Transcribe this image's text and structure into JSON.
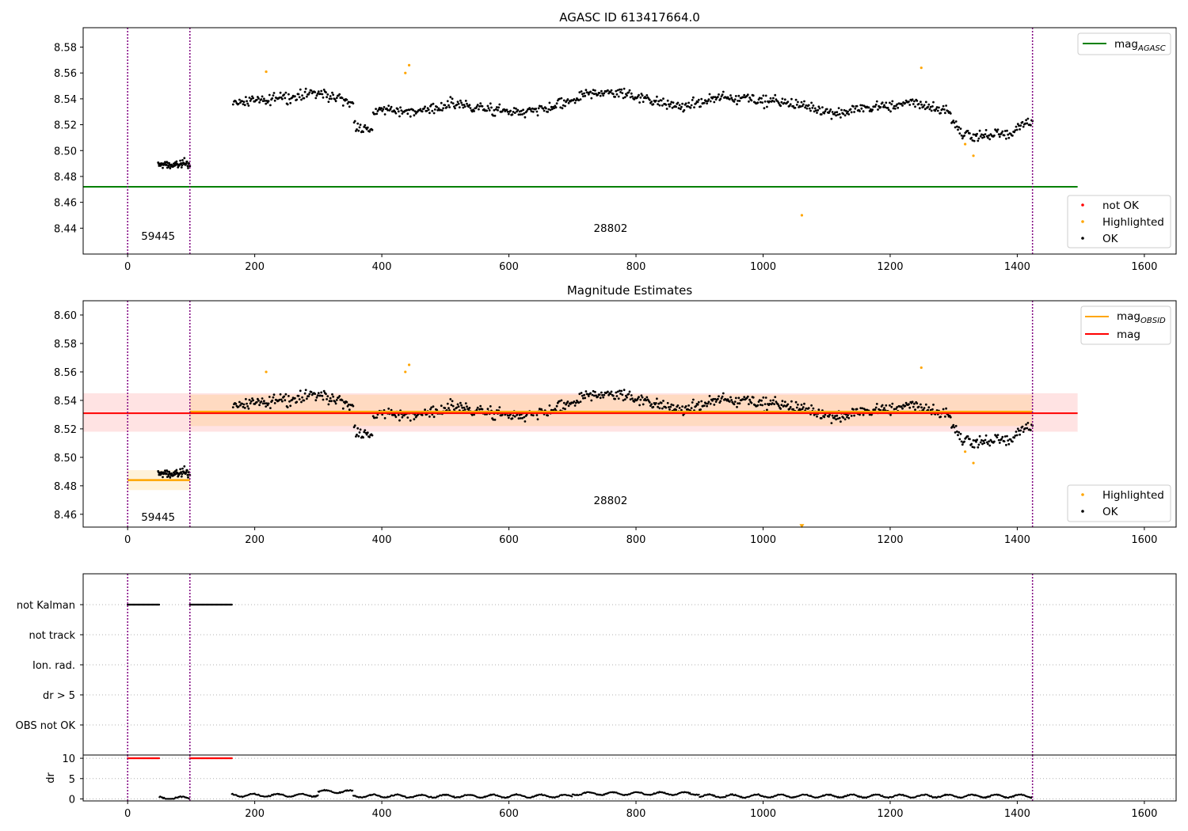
{
  "colors": {
    "ok": "#000000",
    "highlighted": "#ffa500",
    "not_ok": "#ff0000",
    "agasc_line": "#008000",
    "obsid_line": "#ffa500",
    "mag_line": "#ff0000",
    "obs_boundary": "#800080",
    "grid": "#b0b0b0"
  },
  "chart_data": [
    {
      "type": "scatter",
      "title": "AGASC ID 613417664.0",
      "xlim": [
        -70,
        1650
      ],
      "ylim": [
        8.42,
        8.595
      ],
      "xticks": [
        0,
        200,
        400,
        600,
        800,
        1000,
        1200,
        1400,
        1600
      ],
      "yticks": [
        8.44,
        8.46,
        8.48,
        8.5,
        8.52,
        8.54,
        8.56,
        8.58
      ],
      "ytick_labels": [
        "8.44",
        "8.46",
        "8.48",
        "8.50",
        "8.52",
        "8.54",
        "8.56",
        "8.58"
      ],
      "obs_boundaries": [
        0,
        98,
        1424
      ],
      "obsid_labels": [
        {
          "text": "59445",
          "x": 48,
          "y": 8.431
        },
        {
          "text": "28802",
          "x": 760,
          "y": 8.437
        }
      ],
      "agasc_mag": {
        "value": 8.472,
        "x": [
          -70,
          1495
        ]
      },
      "legend_top": [
        {
          "label": "mag",
          "sub": "AGASC"
        }
      ],
      "legend_bottom": [
        "not OK",
        "Highlighted",
        "OK"
      ],
      "highlighted_points": [
        [
          218,
          8.561
        ],
        [
          437,
          8.56
        ],
        [
          443,
          8.566
        ],
        [
          1249,
          8.564
        ],
        [
          1318,
          8.505
        ],
        [
          1331,
          8.496
        ],
        [
          1061,
          8.45
        ]
      ],
      "obs": [
        {
          "x0": 48,
          "x1": 98,
          "base": 8.485,
          "amp": 0.007
        },
        {
          "x0": 166,
          "x1": 1424,
          "base": 8.536,
          "amp": 0.011
        }
      ]
    },
    {
      "type": "scatter",
      "title": "Magnitude Estimates",
      "xlim": [
        -70,
        1650
      ],
      "ylim": [
        8.451,
        8.61
      ],
      "xticks": [
        0,
        200,
        400,
        600,
        800,
        1000,
        1200,
        1400,
        1600
      ],
      "yticks": [
        8.46,
        8.48,
        8.5,
        8.52,
        8.54,
        8.56,
        8.58,
        8.6
      ],
      "ytick_labels": [
        "8.46",
        "8.48",
        "8.50",
        "8.52",
        "8.54",
        "8.56",
        "8.58",
        "8.60"
      ],
      "obs_boundaries": [
        0,
        98,
        1424
      ],
      "obsid_labels": [
        {
          "text": "59445",
          "x": 48,
          "y": 8.4555
        },
        {
          "text": "28802",
          "x": 760,
          "y": 8.467
        }
      ],
      "mag": {
        "value": 8.531,
        "band": [
          8.518,
          8.545
        ],
        "x": [
          -70,
          1495
        ]
      },
      "obsid_mags": [
        {
          "x0": 0,
          "x1": 98,
          "value": 8.484,
          "band": [
            8.477,
            8.491
          ]
        },
        {
          "x0": 98,
          "x1": 1424,
          "value": 8.532,
          "band": [
            8.522,
            8.544
          ]
        }
      ],
      "legend_top": [
        {
          "label": "mag",
          "sub": "OBSID"
        },
        {
          "label": "mag",
          "sub": ""
        }
      ],
      "legend_bottom": [
        "Highlighted",
        "OK"
      ],
      "highlighted_points": [
        [
          218,
          8.56
        ],
        [
          437,
          8.56
        ],
        [
          443,
          8.565
        ],
        [
          1249,
          8.563
        ],
        [
          1318,
          8.504
        ],
        [
          1331,
          8.496
        ]
      ],
      "offscale_points": [
        [
          1061,
          8.452
        ]
      ]
    },
    {
      "type": "scatter",
      "title": "",
      "xlim": [
        -70,
        1650
      ],
      "xticks": [
        0,
        200,
        400,
        600,
        800,
        1000,
        1200,
        1400,
        1600
      ],
      "flag_rows": [
        "not Kalman",
        "not track",
        "Ion. rad.",
        "dr > 5",
        "OBS not OK"
      ],
      "flagged_segments": [
        {
          "row": "not Kalman",
          "x0": 0,
          "x1": 50
        },
        {
          "row": "not Kalman",
          "x0": 98,
          "x1": 164
        }
      ],
      "dr": {
        "ylabel": "dr",
        "yticks": [
          0,
          5,
          10
        ],
        "ylim": [
          -0.5,
          10.8
        ],
        "capped_value": 10,
        "capped_segments": [
          {
            "x0": 0,
            "x1": 50
          },
          {
            "x0": 98,
            "x1": 164
          }
        ],
        "series": [
          {
            "x0": 50,
            "x1": 98,
            "base": 0.2
          },
          {
            "x0": 164,
            "x1": 300,
            "base": 0.9
          },
          {
            "x0": 300,
            "x1": 355,
            "base": 1.8
          },
          {
            "x0": 355,
            "x1": 700,
            "base": 0.7
          },
          {
            "x0": 700,
            "x1": 900,
            "base": 1.3
          },
          {
            "x0": 900,
            "x1": 1424,
            "base": 0.7
          }
        ]
      }
    }
  ]
}
